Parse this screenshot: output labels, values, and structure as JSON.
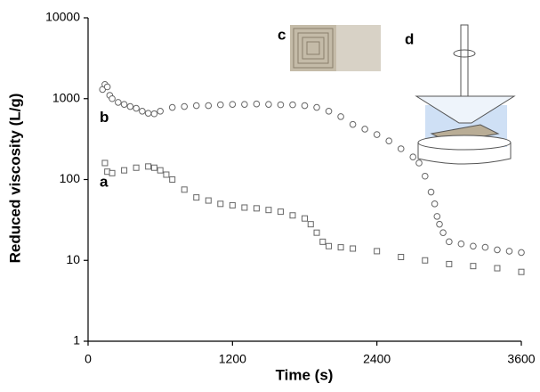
{
  "chart_data": {
    "type": "scatter",
    "x_label": "Time (s)",
    "y_label": "Reduced viscosity (L/g)",
    "xlim": [
      0,
      3600
    ],
    "xticks": [
      0,
      1200,
      2400,
      3600
    ],
    "ylim": [
      1,
      10000
    ],
    "yticks": [
      1,
      10,
      100,
      1000,
      10000
    ],
    "y_scale": "log",
    "annotations": [
      "c",
      "d"
    ],
    "series": [
      {
        "name": "b",
        "marker": "circle",
        "color": "#666",
        "x": [
          120,
          140,
          160,
          180,
          200,
          250,
          300,
          350,
          400,
          450,
          500,
          550,
          600,
          700,
          800,
          900,
          1000,
          1100,
          1200,
          1300,
          1400,
          1500,
          1600,
          1700,
          1800,
          1900,
          2000,
          2100,
          2200,
          2300,
          2400,
          2500,
          2600,
          2700,
          2750,
          2800,
          2850,
          2880,
          2900,
          2920,
          2950,
          3000,
          3100,
          3200,
          3300,
          3400,
          3500,
          3600
        ],
        "values": [
          1300,
          1500,
          1400,
          1100,
          1000,
          900,
          850,
          800,
          760,
          700,
          660,
          650,
          700,
          780,
          800,
          820,
          820,
          840,
          850,
          850,
          860,
          850,
          840,
          840,
          820,
          780,
          700,
          600,
          480,
          420,
          360,
          300,
          240,
          190,
          160,
          110,
          70,
          50,
          35,
          28,
          22,
          17,
          16,
          15,
          14.5,
          13.5,
          13,
          12.5
        ]
      },
      {
        "name": "a",
        "marker": "square",
        "color": "#666",
        "x": [
          140,
          160,
          200,
          300,
          400,
          500,
          550,
          600,
          650,
          700,
          800,
          900,
          1000,
          1100,
          1200,
          1300,
          1400,
          1500,
          1600,
          1700,
          1800,
          1850,
          1900,
          1950,
          2000,
          2100,
          2200,
          2400,
          2600,
          2800,
          3000,
          3200,
          3400,
          3600
        ],
        "values": [
          160,
          125,
          120,
          130,
          140,
          145,
          140,
          130,
          115,
          100,
          75,
          60,
          55,
          50,
          48,
          45,
          44,
          42,
          40,
          36,
          33,
          28,
          22,
          17,
          15,
          14.5,
          14,
          13,
          11,
          10,
          9,
          8.5,
          8,
          7.2
        ]
      }
    ]
  }
}
